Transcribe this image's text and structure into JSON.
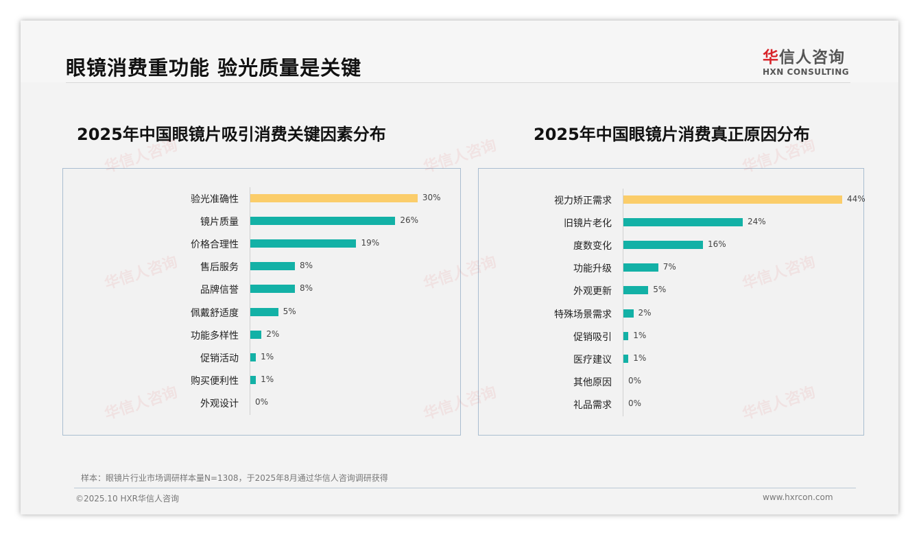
{
  "header": {
    "title": "眼镜消费重功能 验光质量是关键",
    "logo_cn_red": "华",
    "logo_cn": "信人咨询",
    "logo_en": "HXN CONSULTING"
  },
  "colors": {
    "highlight": "#fbcd6a",
    "bar": "#13b1a6"
  },
  "chart_data": [
    {
      "type": "bar",
      "orientation": "horizontal",
      "title": "2025年中国眼镜片吸引消费关键因素分布",
      "unit": "%",
      "xlim": [
        0,
        30
      ],
      "categories": [
        "验光准确性",
        "镜片质量",
        "价格合理性",
        "售后服务",
        "品牌信誉",
        "佩戴舒适度",
        "功能多样性",
        "促销活动",
        "购买便利性",
        "外观设计"
      ],
      "values": [
        30,
        26,
        19,
        8,
        8,
        5,
        2,
        1,
        1,
        0
      ],
      "labels": [
        "30%",
        "26%",
        "19%",
        "8%",
        "8%",
        "5%",
        "2%",
        "1%",
        "1%",
        "0%"
      ]
    },
    {
      "type": "bar",
      "orientation": "horizontal",
      "title": "2025年中国眼镜片消费真正原因分布",
      "unit": "%",
      "xlim": [
        0,
        44
      ],
      "categories": [
        "视力矫正需求",
        "旧镜片老化",
        "度数变化",
        "功能升级",
        "外观更新",
        "特殊场景需求",
        "促销吸引",
        "医疗建议",
        "其他原因",
        "礼品需求"
      ],
      "values": [
        44,
        24,
        16,
        7,
        5,
        2,
        1,
        1,
        0,
        0
      ],
      "labels": [
        "44%",
        "24%",
        "16%",
        "7%",
        "5%",
        "2%",
        "1%",
        "1%",
        "0%",
        "0%"
      ]
    }
  ],
  "footer": {
    "note": "样本：眼镜片行业市场调研样本量N=1308，于2025年8月通过华信人咨询调研获得",
    "copyright": "©2025.10 HXR华信人咨询",
    "url": "www.hxrcon.com"
  }
}
